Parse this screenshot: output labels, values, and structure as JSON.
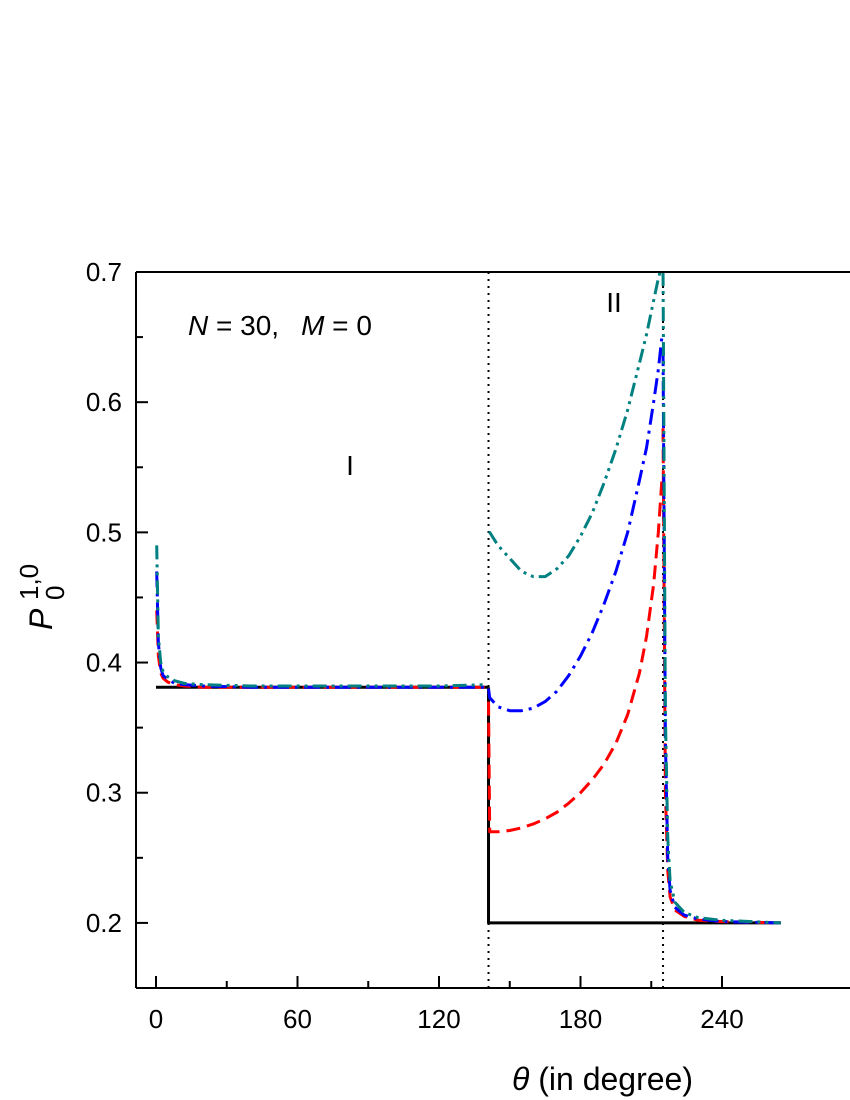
{
  "chart_data": {
    "type": "line",
    "title": "",
    "xlabel": {
      "symbol": "θ",
      "text": " (in degree)"
    },
    "ylabel": {
      "symbol": "P",
      "superscript": "1,0",
      "subscript": "0"
    },
    "xlim": [
      -15,
      265
    ],
    "ylim": [
      0.15,
      0.7
    ],
    "xticks": [
      0,
      60,
      120,
      180,
      240
    ],
    "yticks": [
      0.2,
      0.3,
      0.4,
      0.5,
      0.6,
      0.7
    ],
    "annotations": {
      "params": {
        "N_symbol": "N",
        "N_rest": " = 30,",
        "M_symbol": "M",
        "M_rest": " = 0"
      },
      "region_I": "I",
      "region_II": "II"
    },
    "vlines": [
      141,
      215
    ],
    "series": [
      {
        "color": "#000000",
        "dash": "solid",
        "segments": [
          {
            "x": [
              0,
              141
            ],
            "y": [
              0.381,
              0.381
            ]
          },
          {
            "x": [
              141,
              141,
              215
            ],
            "y": [
              0.381,
              0.2,
              0.2
            ]
          },
          {
            "x": [
              215,
              265
            ],
            "y": [
              0.2,
              0.2
            ]
          }
        ]
      },
      {
        "color": "#ff0000",
        "dash": "dashed",
        "segments": [
          {
            "x": [
              0.3,
              1,
              2,
              3,
              5,
              8,
              12,
              20,
              40,
              80,
              120,
              140
            ],
            "y": [
              0.44,
              0.405,
              0.392,
              0.388,
              0.385,
              0.383,
              0.382,
              0.381,
              0.381,
              0.381,
              0.381,
              0.381
            ]
          },
          {
            "x": [
              141,
              141.5,
              145,
              150,
              155,
              160,
              165,
              170,
              175,
              180,
              185,
              190,
              195,
              200,
              205,
              208,
              211,
              213,
              214.5
            ],
            "y": [
              0.37,
              0.27,
              0.27,
              0.271,
              0.273,
              0.276,
              0.28,
              0.285,
              0.292,
              0.3,
              0.31,
              0.322,
              0.338,
              0.36,
              0.392,
              0.42,
              0.46,
              0.5,
              0.54
            ]
          },
          {
            "x": [
              215,
              216,
              217,
              218,
              220,
              224,
              230,
              240,
              265
            ],
            "y": [
              0.58,
              0.3,
              0.24,
              0.22,
              0.21,
              0.205,
              0.202,
              0.201,
              0.2
            ]
          }
        ]
      },
      {
        "color": "#0000ff",
        "dash": "dashdot",
        "segments": [
          {
            "x": [
              0.3,
              1,
              2,
              3,
              5,
              8,
              12,
              20,
              40,
              80,
              120,
              140
            ],
            "y": [
              0.47,
              0.415,
              0.396,
              0.39,
              0.387,
              0.384,
              0.383,
              0.382,
              0.381,
              0.381,
              0.381,
              0.381
            ]
          },
          {
            "x": [
              141,
              141.5,
              145,
              150,
              155,
              160,
              165,
              170,
              175,
              180,
              185,
              190,
              195,
              200,
              205,
              208,
              211,
              213,
              214.5
            ],
            "y": [
              0.38,
              0.373,
              0.366,
              0.363,
              0.363,
              0.365,
              0.37,
              0.378,
              0.39,
              0.405,
              0.423,
              0.445,
              0.47,
              0.5,
              0.54,
              0.565,
              0.6,
              0.625,
              0.65
            ]
          },
          {
            "x": [
              215,
              216,
              217,
              218,
              220,
              224,
              230,
              240,
              265
            ],
            "y": [
              0.64,
              0.34,
              0.25,
              0.225,
              0.212,
              0.206,
              0.203,
              0.201,
              0.2
            ]
          }
        ]
      },
      {
        "color": "#008080",
        "dash": "dashdotdot",
        "segments": [
          {
            "x": [
              0.3,
              1,
              2,
              3,
              5,
              8,
              12,
              20,
              40,
              80,
              120,
              140
            ],
            "y": [
              0.49,
              0.42,
              0.4,
              0.393,
              0.389,
              0.386,
              0.384,
              0.383,
              0.382,
              0.382,
              0.382,
              0.383
            ]
          },
          {
            "x": [
              141,
              141.5,
              145,
              150,
              155,
              160,
              165,
              170,
              175,
              180,
              185,
              190,
              195,
              200,
              205,
              208,
              211,
              213,
              214.5
            ],
            "y": [
              0.5,
              0.5,
              0.49,
              0.48,
              0.47,
              0.466,
              0.466,
              0.472,
              0.482,
              0.497,
              0.515,
              0.538,
              0.564,
              0.594,
              0.63,
              0.652,
              0.678,
              0.695,
              0.705
            ]
          },
          {
            "x": [
              215,
              216,
              217,
              218,
              220,
              224,
              230,
              240,
              265
            ],
            "y": [
              0.7,
              0.36,
              0.265,
              0.232,
              0.216,
              0.208,
              0.204,
              0.202,
              0.2
            ]
          }
        ]
      }
    ]
  }
}
